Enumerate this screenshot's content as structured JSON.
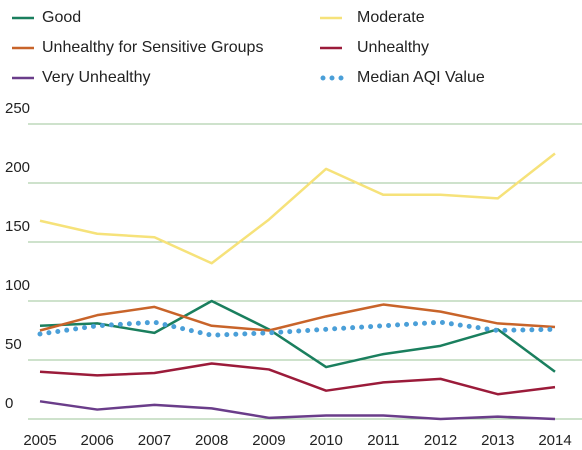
{
  "chart_data": {
    "type": "line",
    "x": [
      "2005",
      "2006",
      "2007",
      "2008",
      "2009",
      "2010",
      "2011",
      "2012",
      "2013",
      "2014"
    ],
    "series": [
      {
        "name": "Good",
        "color": "#1a7f5e",
        "values": [
          79,
          81,
          73,
          100,
          76,
          44,
          55,
          62,
          76,
          40
        ]
      },
      {
        "name": "Moderate",
        "color": "#f6e27a",
        "values": [
          168,
          157,
          154,
          132,
          169,
          212,
          190,
          190,
          187,
          225
        ]
      },
      {
        "name": "Unhealthy for Sensitive Groups",
        "color": "#c8642a",
        "values": [
          75,
          88,
          95,
          79,
          75,
          87,
          97,
          91,
          81,
          78
        ]
      },
      {
        "name": "Unhealthy",
        "color": "#9b1b3a",
        "values": [
          40,
          37,
          39,
          47,
          42,
          24,
          31,
          34,
          21,
          27
        ]
      },
      {
        "name": "Very Unhealthy",
        "color": "#6a3d8a",
        "values": [
          15,
          8,
          12,
          9,
          1,
          3,
          3,
          0,
          2,
          0
        ]
      },
      {
        "name": "Median AQI Value",
        "color": "#4a9fd8",
        "style": "dotted",
        "values": [
          72,
          79,
          82,
          71,
          73,
          76,
          79,
          82,
          75,
          76
        ]
      }
    ],
    "ylim": [
      0,
      250
    ],
    "yticks": [
      0,
      50,
      100,
      150,
      200,
      250
    ],
    "grid": true
  }
}
